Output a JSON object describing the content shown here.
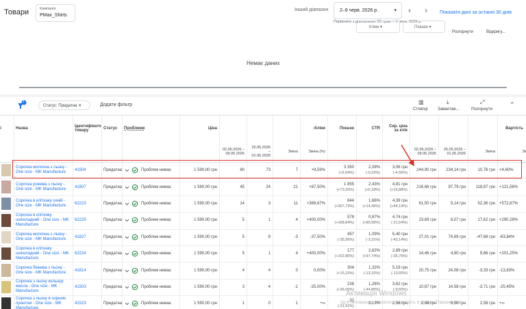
{
  "header": {
    "title": "Товари",
    "campaign_label": "Кампанія",
    "campaign": "PMax_Shirts",
    "range_label": "Інший діапазон",
    "range": "2–9 черв. 2026 р.",
    "compare": "Порівняно з діапазоном: 25 трав. – 1 черв. 2026 р.",
    "last30": "Показати дані за останні 30 днів"
  },
  "toolbar": {
    "dropdown1": "Кліки",
    "dropdown2": "Покази",
    "expand": "Розгорнути",
    "open": "Відкригу..."
  },
  "chart_area": {
    "empty": "Немає даних"
  },
  "filters": {
    "badge": "1",
    "chip": "Статус: Придатна",
    "add": "Додати фільтр",
    "columns": "Стовпці",
    "download": "Завантаж...",
    "expand": "Розгорнути"
  },
  "table": {
    "headers": {
      "image": "ражі",
      "name": "Назва",
      "id": "Ідентифікатор товару",
      "status": "Статус",
      "problems": "Проблеми",
      "price": "Ціна",
      "clicks": "Кліки",
      "impr": "Покази",
      "ctr": "CTR",
      "cpc": "Сер. ціна за клік",
      "cost": "Вартість"
    },
    "clicks_sub": [
      "02.06.2026 – 09.06.2026",
      "25.05.2026 – 01.06.2026",
      "Зміна",
      "Зміна (%)"
    ],
    "cost_sub": [
      "02.06.2026 – 09.06.2026",
      "25.05.2026 – 01.06.2026",
      "Зміна",
      "Зміна (%)"
    ],
    "rows": [
      {
        "name": "Сорочка молочна з льону - One size - MK Manufacture",
        "id": "41504",
        "status": "Придатна",
        "problem": "Проблем немає",
        "price": "1 590,00 грн",
        "clicks": "80",
        "clicks_prev": "73",
        "clicks_change": "7",
        "clicks_pct": "+9,59%",
        "impr": "3 350",
        "impr_change": "(+9,94%)",
        "ctr": "2,39%",
        "ctr_change": "(-0,32%)",
        "cpc": "3,06 грн",
        "cpc_change": "(-4,56%)",
        "cost": "244,90 грн",
        "cost_prev": "234,14 грн",
        "cost_change": "10,76 грн",
        "cost_pct": "+4,60%"
      },
      {
        "name": "Сорочка рожева з льону - One size - MK Manufacture",
        "id": "41507",
        "status": "Придатна",
        "problem": "Проблем немає",
        "price": "1 590,00 грн",
        "clicks": "45",
        "clicks_prev": "24",
        "clicks_change": "21",
        "clicks_pct": "+87,50%",
        "impr": "1 855",
        "impr_change": "(+73,20%)",
        "ctr": "2,43%",
        "ctr_change": "(+0,18%)",
        "cpc": "4,81 грн",
        "cpc_change": "(+16,88%)",
        "cost": "216,66 грн",
        "cost_prev": "97,79 грн",
        "cost_change": "118,87 грн",
        "cost_pct": "+121,56%"
      },
      {
        "name": "Сорочка в клітинку синій - One size - MK Manufacture",
        "id": "62223",
        "status": "Придатна",
        "problem": "Проблем немає",
        "price": "1 590,00 грн",
        "clicks": "14",
        "clicks_prev": "3",
        "clicks_change": "11",
        "clicks_pct": "+366,67%",
        "impr": "844",
        "impr_change": "(+307,73%)",
        "ctr": "1,66%",
        "ctr_change": "(+14,45%)",
        "cpc": "4,39 грн",
        "cpc_change": "(+44,19%)",
        "cost": "61,50 грн",
        "cost_prev": "9,14 грн",
        "cost_change": "52,36 грн",
        "cost_pct": "+572,87%"
      },
      {
        "name": "Сорочка в клітинку шоколадний - One size - MK Manufacture",
        "id": "62225",
        "status": "Придатна",
        "problem": "Проблем немає",
        "price": "1 590,00 грн",
        "clicks": "5",
        "clicks_prev": "1",
        "clicks_change": "4",
        "clicks_pct": "+400,00%",
        "impr": "578",
        "impr_change": "(+168,84%)",
        "ctr": "0,87%",
        "ctr_change": "(+85,99%)",
        "cpc": "4,74 грн",
        "cpc_change": "(-21,54%)",
        "cost": "23,69 грн",
        "cost_prev": "6,07 грн",
        "cost_change": "17,62 грн",
        "cost_pct": "+290,28%"
      },
      {
        "name": "Сорочка молочна з льону - One size - MK Manufacture",
        "id": "41827",
        "status": "Придатна",
        "problem": "Проблем немає",
        "price": "1 590,00 грн",
        "clicks": "5",
        "clicks_prev": "8",
        "clicks_change": "-3",
        "clicks_pct": "-37,50%",
        "impr": "457",
        "impr_change": "(-35,36%)",
        "ctr": "1,09%",
        "ctr_change": "(-3,31%)",
        "cpc": "5,40 грн",
        "cpc_change": "(-42,14%)",
        "cost": "27,01 грн",
        "cost_prev": "74,69 грн",
        "cost_change": "-47,68 грн",
        "cost_pct": "-63,84%"
      },
      {
        "name": "Сорочка в клітинку шоколадний - One size - MK Manufacture",
        "id": "62224",
        "status": "Придатна",
        "problem": "Проблем немає",
        "price": "1 590,00 грн",
        "clicks": "5",
        "clicks_prev": "1",
        "clicks_change": "4",
        "clicks_pct": "+400,00%",
        "impr": "177",
        "impr_change": "(+152,86%)",
        "ctr": "2,82%",
        "ctr_change": "(+97,74%)",
        "cpc": "2,89 грн",
        "cpc_change": "(-36,75%)",
        "cost": "14,46 грн",
        "cost_prev": "4,80 грн",
        "cost_change": "9,66 грн",
        "cost_pct": "+201,25%"
      },
      {
        "name": "Сорочка бежева з льону - One size - MK Manufacture",
        "id": "41814",
        "status": "Придатна",
        "problem": "Проблем немає",
        "price": "1 590,00 грн",
        "clicks": "4",
        "clicks_prev": "4",
        "clicks_change": "0",
        "clicks_pct": "0,00%",
        "impr": "304",
        "impr_change": "(+15,15%)",
        "ctr": "1,32%",
        "ctr_change": "(-13,16%)",
        "cpc": "5,19 грн",
        "cpc_change": "(-13,55%)",
        "cost": "20,75 грн",
        "cost_prev": "24,08 грн",
        "cost_change": "-3,33 грн",
        "cost_pct": "-13,83%"
      },
      {
        "name": "Сорочка з льону кольору масла - One size - MK Manufacture",
        "id": "41503",
        "status": "Придатна",
        "problem": "Проблем немає",
        "price": "1 590,00 грн",
        "clicks": "3",
        "clicks_prev": "4",
        "clicks_change": "-1",
        "clicks_pct": "-25,00%",
        "impr": "238",
        "impr_change": "(+36,00%)",
        "ctr": "1,26%",
        "ctr_change": "(-44,85%)",
        "cpc": "3,62 грн",
        "cpc_change": "(-9,50%)",
        "cost": "10,87 грн",
        "cost_prev": "14,58 грн",
        "cost_change": "-3,71 грн",
        "cost_pct": "-25,45%"
      },
      {
        "name": "Сорочка з льону в чорним принтом - One size - MK Manufacture",
        "id": "41523",
        "status": "Придатна",
        "problem": "Проблем немає",
        "price": "1 590,00 грн",
        "clicks": "1",
        "clicks_prev": "0",
        "clicks_change": "1",
        "clicks_pct": "+∞",
        "impr": "32",
        "impr_change": "(-31,91%)",
        "ctr": "3,13%",
        "cpc": "2,58 грн",
        "cost": "2,58 грн",
        "cost_prev": "0,00 грн",
        "cost_change": "2,58 грн",
        "cost_pct": "+∞"
      }
    ]
  },
  "watermark": {
    "title": "Активація Windows",
    "text": "Щоб активувати Windows, перейдіть в розділ \"Параметри\"."
  }
}
